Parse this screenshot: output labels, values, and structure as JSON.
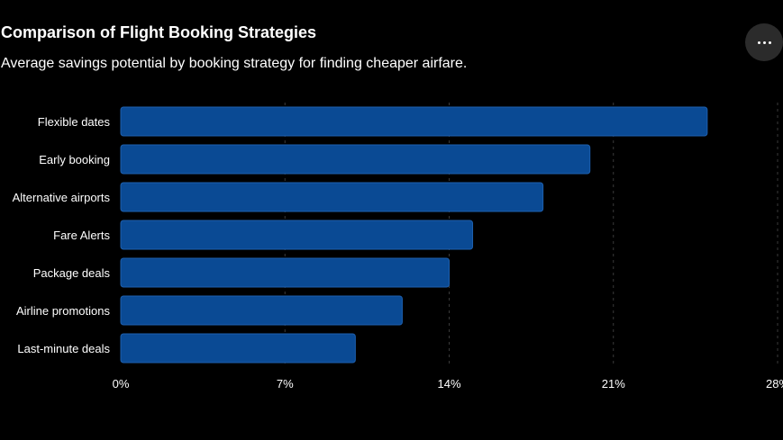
{
  "header": {
    "title": "Comparison of Flight Booking Strategies",
    "subtitle": "Average savings potential by booking strategy for finding cheaper airfare."
  },
  "toolbar": {
    "more_icon": "more-horizontal-icon"
  },
  "colors": {
    "background": "#000000",
    "bar": "#0a4a94",
    "bar_border": "#1d5fae",
    "grid": "#3a3a3a",
    "text": "#ffffff"
  },
  "chart_data": {
    "type": "bar",
    "orientation": "horizontal",
    "title": "Comparison of Flight Booking Strategies",
    "subtitle": "Average savings potential by booking strategy for finding cheaper airfare.",
    "categories": [
      "Flexible dates",
      "Early booking",
      "Alternative airports",
      "Fare Alerts",
      "Package deals",
      "Airline promotions",
      "Last-minute deals"
    ],
    "values": [
      25,
      20,
      18,
      15,
      14,
      12,
      10
    ],
    "xlim": [
      0,
      28
    ],
    "xticks": [
      0,
      7,
      14,
      21,
      28
    ],
    "xtick_labels": [
      "0%",
      "7%",
      "14%",
      "21%",
      "28%"
    ],
    "grid": "vertical-dashed",
    "legend": "none"
  }
}
